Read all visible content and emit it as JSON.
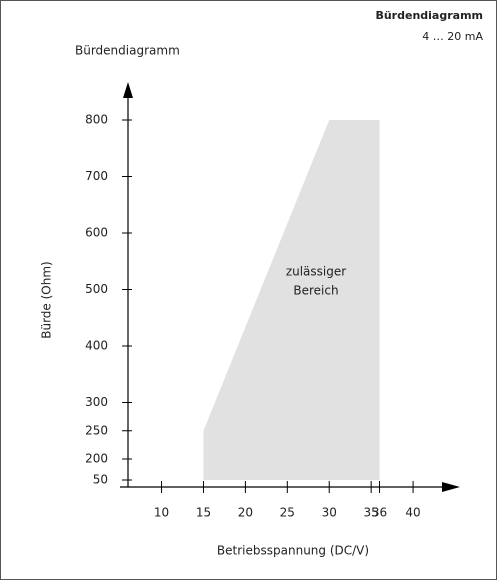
{
  "header": {
    "title": "Bürdendiagramm",
    "subtitle": "4 … 20 mA"
  },
  "chart_data": {
    "type": "area",
    "title": "Bürdendiagramm",
    "xlabel": "Betriebsspannung (DC/V)",
    "ylabel": "Bürde (Ohm)",
    "annotation": [
      "zulässiger",
      "Bereich"
    ],
    "series": [
      {
        "color": "#e1e1e1",
        "x": [
          15,
          15,
          30,
          36,
          36
        ],
        "values": [
          50,
          250,
          800,
          800,
          50
        ]
      }
    ],
    "xlim": [
      6,
      45
    ],
    "xticks": [
      10,
      15,
      20,
      25,
      30,
      35,
      36,
      40
    ],
    "ylim": [
      50,
      870
    ],
    "yticks": [
      50,
      200,
      250,
      300,
      400,
      500,
      600,
      700,
      800
    ]
  }
}
